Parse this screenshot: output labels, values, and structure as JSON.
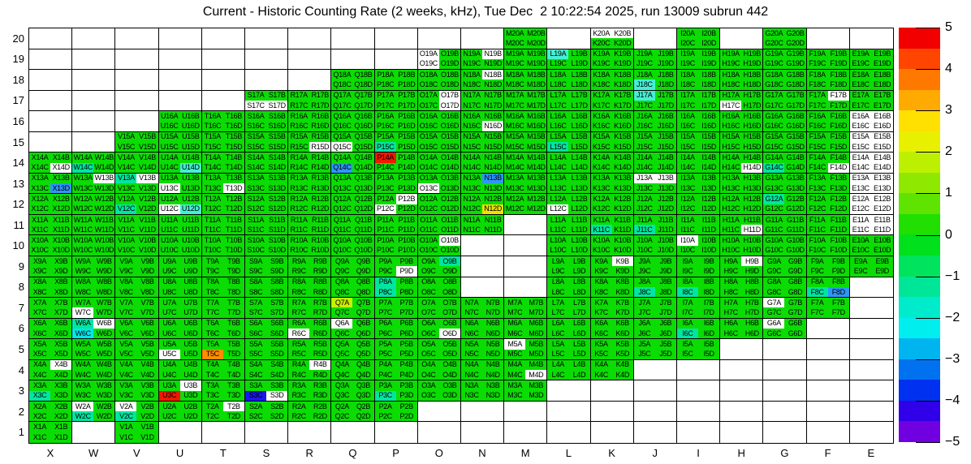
{
  "title": "Current - Historic Counting Rate (2 weeks, kHz), Tue Dec  2 10:22:54 2025, run 13009 subrun 442",
  "chart_data": {
    "type": "heatmap",
    "description": "20x20 detector module map; each module split into 4 sub-cells A,B (top) and C,D (bottom); color = current minus historic counting rate deviation in kHz",
    "x_labels": [
      "X",
      "W",
      "V",
      "U",
      "T",
      "S",
      "R",
      "Q",
      "P",
      "O",
      "N",
      "M",
      "L",
      "K",
      "J",
      "I",
      "H",
      "G",
      "F",
      "E"
    ],
    "y_labels": [
      "20",
      "19",
      "18",
      "17",
      "16",
      "15",
      "14",
      "13",
      "12",
      "11",
      "10",
      "9",
      "8",
      "7",
      "6",
      "5",
      "4",
      "3",
      "2",
      "1"
    ],
    "sub_labels": [
      "A",
      "B",
      "C",
      "D"
    ],
    "colorbar": {
      "min": -5,
      "max": 5,
      "tick_labels": [
        "5",
        "4",
        "3",
        "2",
        "1",
        "0",
        "−1",
        "−2",
        "−3",
        "−4",
        "−5"
      ],
      "band_colors": [
        "#f20000",
        "#ff4500",
        "#ff7800",
        "#ffaa00",
        "#ffe000",
        "#e8f000",
        "#bdf000",
        "#8fe800",
        "#5fe300",
        "#21df00",
        "#00e01c",
        "#00e35c",
        "#00e699",
        "#00ebcc",
        "#00eeee",
        "#00b4f0",
        "#0072f0",
        "#0030f0",
        "#3000e8",
        "#7000e0"
      ]
    },
    "palette": {
      "g": "#0bdc03",
      "t": "#00e6a0",
      "c": "#45efd4",
      "C": "#00e8e8",
      "b": "#2e96fa",
      "B": "#1a16f0",
      "r": "#f01800",
      "o": "#ff8c00",
      "y": "#f0e000",
      "Y": "#c8f000",
      "w": "#ffffff"
    },
    "palette_values": {
      "g": 0.5,
      "t": -1,
      "c": -1.5,
      "C": -2,
      "b": -3,
      "B": -4,
      "r": 5,
      "o": 3.5,
      "y": 2,
      "Y": 1.5,
      "w": null
    },
    "rows": [
      {
        "row": "20",
        "cells": {
          "M": "gggg",
          "K": "wwgg",
          "I": "gggg",
          "G": "gggg"
        }
      },
      {
        "row": "19",
        "cells": {
          "O": "wgwg",
          "N": "gwgg",
          "M": "gggg",
          "L": "cggg",
          "K": "gggg",
          "J": "gggg",
          "I": "gggg",
          "H": "gggg",
          "G": "gggg",
          "F": "gggg",
          "E": "gggg"
        }
      },
      {
        "row": "18",
        "cells": {
          "Q": "gggg",
          "P": "gggg",
          "O": "gggg",
          "N": "gwgg",
          "M": "gggg",
          "L": "gggg",
          "K": "gggg",
          "J": "ggcg",
          "I": "gggg",
          "H": "gggg",
          "G": "gggg",
          "F": "gggg",
          "E": "gggg"
        }
      },
      {
        "row": "17",
        "cells": {
          "S": "ggww",
          "R": "gggg",
          "Q": "gggg",
          "P": "gggg",
          "O": "gwgw",
          "N": "gggg",
          "M": "gggg",
          "L": "gggg",
          "K": "gggg",
          "J": "cggg",
          "I": "gggg",
          "H": "ggwg",
          "G": "gggg",
          "F": "gwgg",
          "E": "gggg"
        }
      },
      {
        "row": "16",
        "cells": {
          "U": "gggg",
          "T": "gggg",
          "S": "gggg",
          "R": "gggg",
          "Q": "gggg",
          "P": "gggg",
          "O": "gggg",
          "N": "gggw",
          "M": "gggg",
          "L": "gggg",
          "K": "gggg",
          "J": "gggg",
          "I": "gggg",
          "H": "gggg",
          "G": "gggg",
          "F": "gggg",
          "E": "wwww"
        }
      },
      {
        "row": "15",
        "cells": {
          "V": "gggg",
          "U": "gggg",
          "T": "gggg",
          "S": "gggg",
          "R": "gggw",
          "Q": "ggwg",
          "P": "ggtg",
          "O": "gggg",
          "N": "gggg",
          "M": "gggg",
          "L": "ggtg",
          "K": "gggg",
          "J": "gggg",
          "I": "gggg",
          "H": "gggg",
          "G": "gggg",
          "F": "gggg",
          "E": "wwww"
        }
      },
      {
        "row": "14",
        "cells": {
          "X": "gggw",
          "W": "ggtg",
          "V": "gggg",
          "U": "gggc",
          "T": "gggg",
          "S": "gggg",
          "R": "gggg",
          "Q": "ggbg",
          "P": "rggg",
          "O": "gggg",
          "N": "gggg",
          "M": "gggg",
          "L": "gggg",
          "K": "gggg",
          "J": "gggg",
          "I": "gggg",
          "H": "gggw",
          "G": "ggtg",
          "F": "gggw",
          "E": "wwww"
        }
      },
      {
        "row": "13",
        "cells": {
          "X": "gggb",
          "W": "gwgg",
          "V": "twgg",
          "U": "ggwg",
          "T": "gggw",
          "S": "gggg",
          "R": "gggg",
          "Q": "gggg",
          "P": "gggg",
          "O": "ggwg",
          "N": "gbgg",
          "M": "gggg",
          "L": "gggg",
          "K": "gggg",
          "J": "wwgg",
          "I": "gggg",
          "H": "gggg",
          "G": "gggg",
          "F": "gggg",
          "E": "wwww"
        }
      },
      {
        "row": "12",
        "cells": {
          "X": "gggg",
          "W": "gggg",
          "V": "ggtg",
          "U": "ggwc",
          "T": "gggg",
          "S": "gggg",
          "R": "gggg",
          "Q": "gggg",
          "P": "gwwg",
          "O": "gggg",
          "N": "gggy",
          "M": "gggg",
          "L": "ggwg",
          "K": "gggg",
          "J": "gggg",
          "I": "gggg",
          "H": "gggg",
          "G": "tggg",
          "F": "gggg",
          "E": "wwww"
        }
      },
      {
        "row": "11",
        "cells": {
          "X": "gggg",
          "W": "gggg",
          "V": "gggg",
          "U": "gggg",
          "T": "gggg",
          "S": "gggg",
          "R": "gggg",
          "Q": "gggg",
          "P": "gggg",
          "O": "gggg",
          "N": "gggg",
          "L": "gggg",
          "K": "ggtg",
          "J": "ggtg",
          "I": "gggg",
          "H": "gggw",
          "G": "gggg",
          "F": "gggg",
          "E": "wwww"
        }
      },
      {
        "row": "10",
        "cells": {
          "X": "gggg",
          "W": "gggg",
          "V": "gggg",
          "U": "gggg",
          "T": "gggg",
          "S": "gggg",
          "R": "gggg",
          "Q": "gggg",
          "P": "gggg",
          "O": "gwgg",
          "L": "gggg",
          "K": "gggg",
          "J": "gggg",
          "I": "wggg",
          "H": "gggg",
          "G": "gggg",
          "F": "gggg",
          "E": "gggg"
        }
      },
      {
        "row": "9",
        "cells": {
          "X": "gggg",
          "W": "gggg",
          "V": "gggg",
          "U": "gggg",
          "T": "gggg",
          "S": "gggg",
          "R": "gggg",
          "Q": "gggg",
          "P": "gggw",
          "O": "gtgg",
          "L": "gggg",
          "K": "gwgg",
          "J": "gggg",
          "I": "gggg",
          "H": "gwgg",
          "G": "gggg",
          "F": "gggg",
          "E": "gggg"
        }
      },
      {
        "row": "8",
        "cells": {
          "X": "gggg",
          "W": "gggg",
          "V": "gggg",
          "U": "gggg",
          "T": "gggg",
          "S": "gggg",
          "R": "gggg",
          "Q": "gggg",
          "P": "tgtg",
          "O": "gggg",
          "L": "gggg",
          "K": "gggg",
          "J": "ggtg",
          "I": "ggtg",
          "H": "gggg",
          "G": "gggg",
          "F": "ggtb"
        }
      },
      {
        "row": "7",
        "cells": {
          "X": "gggg",
          "W": "ggwg",
          "V": "gggg",
          "U": "gggg",
          "T": "gggg",
          "S": "gggg",
          "R": "gggg",
          "Q": "Yggg",
          "P": "gggg",
          "O": "gggg",
          "N": "gggg",
          "M": "gggg",
          "L": "gggg",
          "K": "gggg",
          "J": "gggg",
          "I": "gggg",
          "H": "gggg",
          "G": "wggg",
          "F": "gggg"
        }
      },
      {
        "row": "6",
        "cells": {
          "X": "gggg",
          "W": "twCg",
          "V": "gggg",
          "U": "gggg",
          "T": "gggg",
          "S": "gggg",
          "R": "ggwg",
          "Q": "wggg",
          "P": "gggg",
          "O": "gggw",
          "N": "gggg",
          "M": "gggg",
          "L": "gggg",
          "K": "gggg",
          "J": "gggg",
          "I": "ggtg",
          "H": "gggg",
          "G": "wggg"
        }
      },
      {
        "row": "5",
        "cells": {
          "X": "gggg",
          "W": "gggg",
          "V": "gggg",
          "U": "ggwg",
          "T": "ggog",
          "S": "gggg",
          "R": "gggg",
          "Q": "gggg",
          "P": "gggg",
          "O": "gggg",
          "N": "gggg",
          "M": "wggg",
          "L": "gggg",
          "K": "gggg",
          "J": "gggg",
          "I": "gggg"
        }
      },
      {
        "row": "4",
        "cells": {
          "X": "gwgg",
          "W": "gggg",
          "V": "gggg",
          "U": "gggg",
          "T": "gggg",
          "S": "gggg",
          "R": "gwgg",
          "Q": "gggg",
          "P": "gggg",
          "O": "gggg",
          "N": "gggg",
          "M": "gggw",
          "L": "gggg",
          "K": "gggg"
        }
      },
      {
        "row": "3",
        "cells": {
          "X": "ggtg",
          "W": "gggg",
          "V": "gggg",
          "U": "gwrg",
          "T": "gggg",
          "S": "ggBw",
          "R": "gggg",
          "Q": "gggg",
          "P": "ggtg",
          "O": "gggg",
          "N": "gggg",
          "M": "gggg"
        }
      },
      {
        "row": "2",
        "cells": {
          "X": "gggg",
          "W": "wgtg",
          "V": "wgtg",
          "U": "gggg",
          "T": "gwgg",
          "S": "gggg",
          "R": "gggg",
          "Q": "gggg",
          "P": "gggg"
        }
      },
      {
        "row": "1",
        "cells": {
          "X": "gggg",
          "V": "gggg"
        }
      }
    ]
  }
}
